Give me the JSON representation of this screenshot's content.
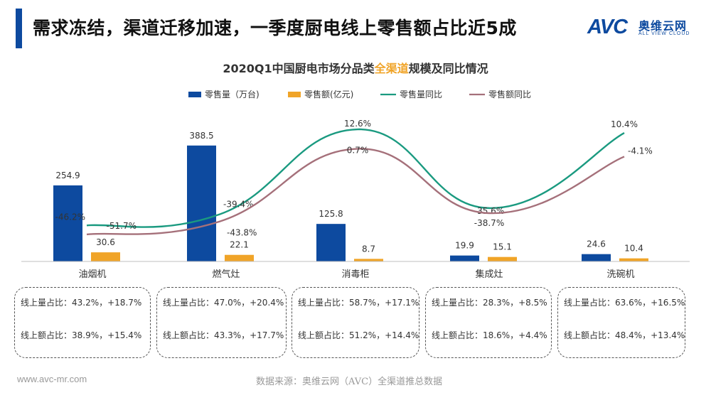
{
  "header": {
    "title": "需求冻结，渠道迁移加速，一季度厨电线上零售额占比近5成"
  },
  "logo": {
    "mark": "AVC",
    "name_cn": "奥维云网",
    "name_en": "ALL VIEW CLOUD"
  },
  "chart_data": {
    "type": "bar",
    "title": "2020Q1中国厨电市场分品类",
    "title_highlight": "全渠道",
    "title_suffix": "规模及同比情况",
    "categories": [
      "油烟机",
      "燃气灶",
      "消毒柜",
      "集成灶",
      "洗碗机"
    ],
    "series": [
      {
        "name": "零售量（万台)",
        "kind": "bar",
        "color": "#0d4a9f",
        "values": [
          254.9,
          388.5,
          125.8,
          19.9,
          24.6
        ],
        "labels": [
          "254.9",
          "388.5",
          "125.8",
          "19.9",
          "24.6"
        ]
      },
      {
        "name": "零售额(亿元)",
        "kind": "bar",
        "color": "#f0a428",
        "values": [
          30.6,
          22.1,
          8.7,
          15.1,
          10.4
        ],
        "labels": [
          "30.6",
          "22.1",
          "8.7",
          "15.1",
          "10.4"
        ]
      },
      {
        "name": "零售量同比",
        "kind": "line",
        "color": "#1a9a80",
        "values": [
          -46.2,
          -39.4,
          12.6,
          -35.6,
          10.4
        ],
        "labels": [
          "-46.2%",
          "-39.4%",
          "12.6%",
          "-35.6%",
          "10.4%"
        ]
      },
      {
        "name": "零售额同比",
        "kind": "line",
        "color": "#a5707a",
        "values": [
          -51.7,
          -43.8,
          0.7,
          -38.7,
          -4.1
        ],
        "labels": [
          "-51.7%",
          "-43.8%",
          "0.7%",
          "-38.7%",
          "-4.1%"
        ]
      }
    ],
    "legend_position": "top"
  },
  "shares": [
    {
      "line1": "线上量占比：43.2%，+18.7%",
      "line2": "线上额占比：38.9%，+15.4%"
    },
    {
      "line1": "线上量占比：47.0%，+20.4%",
      "line2": "线上额占比：43.3%，+17.7%"
    },
    {
      "line1": "线上量占比：58.7%，+17.1%",
      "line2": "线上额占比：51.2%，+14.4%"
    },
    {
      "line1": "线上量占比：28.3%，+8.5%",
      "line2": "线上额占比：18.6%，+4.4%"
    },
    {
      "line1": "线上量占比：63.6%，+16.5%",
      "line2": "线上额占比：48.4%，+13.4%"
    }
  ],
  "footer": {
    "url": "www.avc-mr.com",
    "source": "数据来源：奥维云网（AVC）全渠道推总数据"
  }
}
